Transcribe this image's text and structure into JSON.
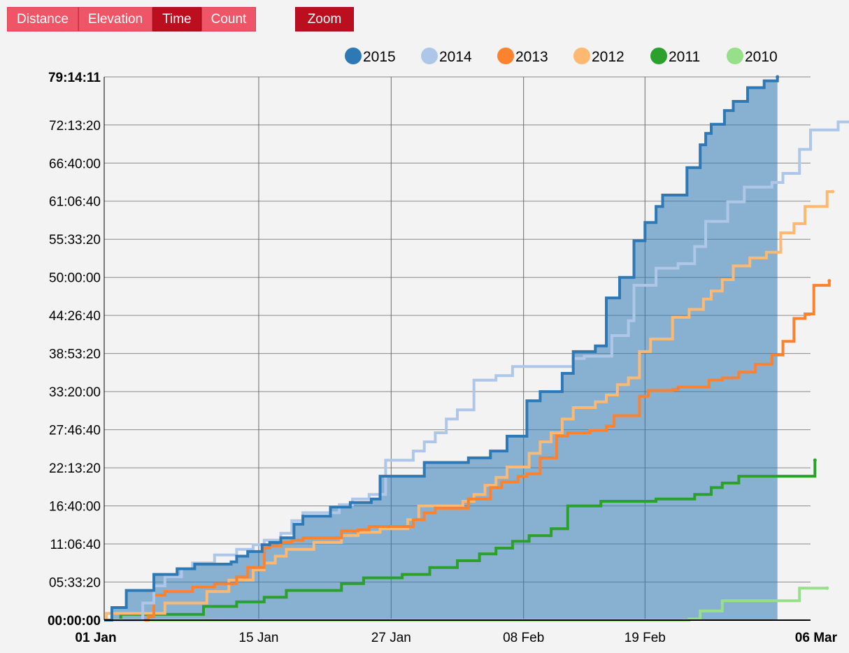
{
  "toolbar": {
    "metrics": [
      {
        "label": "Distance",
        "active": false
      },
      {
        "label": "Elevation",
        "active": false
      },
      {
        "label": "Time",
        "active": true
      },
      {
        "label": "Count",
        "active": false
      }
    ],
    "zoom_label": "Zoom"
  },
  "chart_data": {
    "type": "line",
    "x_unit": "day of year",
    "xlim": [
      "01 Jan",
      "06 Mar"
    ],
    "x_ticks": [
      {
        "day": 1,
        "label": "01 Jan",
        "bold": true
      },
      {
        "day": 15,
        "label": "15 Jan",
        "bold": false
      },
      {
        "day": 27,
        "label": "27 Jan",
        "bold": false
      },
      {
        "day": 39,
        "label": "08 Feb",
        "bold": false
      },
      {
        "day": 50,
        "label": "19 Feb",
        "bold": false
      },
      {
        "day": 65,
        "label": "06 Mar",
        "bold": true
      }
    ],
    "ylim": [
      "00:00:00",
      "79:14:11"
    ],
    "y_ticks": [
      "00:00:00",
      "05:33:20",
      "11:06:40",
      "16:40:00",
      "22:13:20",
      "27:46:40",
      "33:20:00",
      "38:53:20",
      "44:26:40",
      "50:00:00",
      "55:33:20",
      "61:06:40",
      "66:40:00",
      "72:13:20",
      "79:14:11"
    ],
    "grid": true,
    "legend_position": "top-right",
    "series": [
      {
        "name": "2015",
        "color": "#2e78b5",
        "fill": true,
        "points": [
          [
            1,
            "00:00:00"
          ],
          [
            1.7,
            "01:50:00"
          ],
          [
            3,
            "04:20:00"
          ],
          [
            5,
            "04:20:00"
          ],
          [
            5.5,
            "6:40:00"
          ],
          [
            7.5,
            "6:40:00"
          ],
          [
            7.6,
            "7:30:00"
          ],
          [
            9,
            "7:30:00"
          ],
          [
            9.2,
            "8:10:00"
          ],
          [
            11,
            "8:10:00"
          ],
          [
            12.5,
            "8:30:00"
          ],
          [
            13,
            "9:20:00"
          ],
          [
            14,
            "10:00:00"
          ],
          [
            15.3,
            "11:00:00"
          ],
          [
            16,
            "11:20:00"
          ],
          [
            17,
            "12:00:00"
          ],
          [
            18.2,
            "14:00:00"
          ],
          [
            19,
            "15:10:00"
          ],
          [
            21.5,
            "16:30:00"
          ],
          [
            23.3,
            "17:10:00"
          ],
          [
            25.2,
            "17:40:00"
          ],
          [
            26,
            "21:00:00"
          ],
          [
            30,
            "23:00:00"
          ],
          [
            34,
            "23:40:00"
          ],
          [
            36,
            "24:40:00"
          ],
          [
            37.5,
            "26:50:00"
          ],
          [
            39.3,
            "32:00:00"
          ],
          [
            40.5,
            "33:20:00"
          ],
          [
            42.5,
            "36:00:00"
          ],
          [
            43.5,
            "39:10:00"
          ],
          [
            45.5,
            "40:00:00"
          ],
          [
            46.5,
            "47:00:00"
          ],
          [
            47.7,
            "50:00:00"
          ],
          [
            49,
            "55:20:00"
          ],
          [
            50,
            "58:00:00"
          ],
          [
            51,
            "60:20:00"
          ],
          [
            51.6,
            "62:00:00"
          ],
          [
            53.8,
            "66:00:00"
          ],
          [
            55,
            "69:20:00"
          ],
          [
            55.5,
            "71:00:00"
          ],
          [
            56,
            "72:20:00"
          ],
          [
            57.2,
            "74:20:00"
          ],
          [
            58,
            "75:40:00"
          ],
          [
            59.3,
            "77:40:00"
          ],
          [
            60.8,
            "78:40:00"
          ],
          [
            62,
            "79:14:11"
          ]
        ]
      },
      {
        "name": "2014",
        "color": "#aec7e8",
        "fill": false,
        "points": [
          [
            1,
            "00:00:00"
          ],
          [
            4.5,
            "02:30:00"
          ],
          [
            5.5,
            "05:00:00"
          ],
          [
            6.5,
            "06:20:00"
          ],
          [
            8,
            "07:30:00"
          ],
          [
            9,
            "8:20:00"
          ],
          [
            11,
            "9:30:00"
          ],
          [
            13,
            "10:20:00"
          ],
          [
            14.5,
            "11:00:00"
          ],
          [
            15.5,
            "11:40:00"
          ],
          [
            17,
            "12:40:00"
          ],
          [
            18,
            "14:30:00"
          ],
          [
            19,
            "15:40:00"
          ],
          [
            22.3,
            "16:50:00"
          ],
          [
            23.5,
            "17:40:00"
          ],
          [
            25,
            "18:20:00"
          ],
          [
            26.5,
            "23:20:00"
          ],
          [
            29,
            "24:40:00"
          ],
          [
            30,
            "26:00:00"
          ],
          [
            31,
            "27:20:00"
          ],
          [
            32,
            "29:20:00"
          ],
          [
            33,
            "30:40:00"
          ],
          [
            34.5,
            "35:00:00"
          ],
          [
            36.5,
            "35:40:00"
          ],
          [
            38,
            "37:00:00"
          ],
          [
            43,
            "37:00:00"
          ],
          [
            43.5,
            "38:10:00"
          ],
          [
            44.5,
            "38:30:00"
          ],
          [
            47,
            "41:30:00"
          ],
          [
            48.5,
            "43:40:00"
          ],
          [
            49,
            "48:50:00"
          ],
          [
            51,
            "51:20:00"
          ],
          [
            53,
            "52:00:00"
          ],
          [
            54.5,
            "54:30:00"
          ],
          [
            55.5,
            "58:10:00"
          ],
          [
            57.5,
            "61:00:00"
          ],
          [
            59,
            "63:10:00"
          ],
          [
            61.5,
            "63:50:00"
          ],
          [
            62.5,
            "65:10:00"
          ],
          [
            64,
            "68:40:00"
          ],
          [
            65,
            "71:30:00"
          ],
          [
            67.5,
            "72:40:00"
          ],
          [
            69,
            "72:40:00"
          ]
        ]
      },
      {
        "name": "2013",
        "color": "#fd8230",
        "fill": false,
        "points": [
          [
            1,
            "00:00:00"
          ],
          [
            5,
            "00:30:00"
          ],
          [
            5.5,
            "03:40:00"
          ],
          [
            6.5,
            "04:10:00"
          ],
          [
            7.5,
            "04:10:00"
          ],
          [
            9,
            "04:50:00"
          ],
          [
            11,
            "05:20:00"
          ],
          [
            12,
            "5:20:00"
          ],
          [
            13,
            "06:20:00"
          ],
          [
            14,
            "7:40:00"
          ],
          [
            15.5,
            "10:30:00"
          ],
          [
            16,
            "10:50:00"
          ],
          [
            17,
            "11:20:00"
          ],
          [
            18,
            "11:40:00"
          ],
          [
            19,
            "12:00:00"
          ],
          [
            20,
            "12:00:00"
          ],
          [
            21,
            "12:00:00"
          ],
          [
            22.5,
            "13:00:00"
          ],
          [
            24,
            "13:10:00"
          ],
          [
            25,
            "13:40:00"
          ],
          [
            27,
            "13:40:00"
          ],
          [
            29,
            "14:40:00"
          ],
          [
            30,
            "15:40:00"
          ],
          [
            31,
            "16:20:00"
          ],
          [
            32,
            "16:20:00"
          ],
          [
            34,
            "17:40:00"
          ],
          [
            36,
            "19:20:00"
          ],
          [
            37,
            "20:10:00"
          ],
          [
            38.5,
            "21:00:00"
          ],
          [
            39.3,
            "21:20:00"
          ],
          [
            40.5,
            "23:40:00"
          ],
          [
            42,
            "26:50:00"
          ],
          [
            43,
            "27:20:00"
          ],
          [
            45,
            "27:40:00"
          ],
          [
            46.5,
            "28:20:00"
          ],
          [
            47.2,
            "29:50:00"
          ],
          [
            49.5,
            "32:40:00"
          ],
          [
            50.3,
            "33:30:00"
          ],
          [
            52.5,
            "33:40:00"
          ],
          [
            53,
            "34:00:00"
          ],
          [
            55.8,
            "35:00:00"
          ],
          [
            57,
            "35:20:00"
          ],
          [
            58.5,
            "36:10:00"
          ],
          [
            60,
            "37:20:00"
          ],
          [
            61.5,
            "38:40:00"
          ],
          [
            62.5,
            "40:40:00"
          ],
          [
            63.5,
            "44:00:00"
          ],
          [
            64.5,
            "44:40:00"
          ],
          [
            65.3,
            "48:50:00"
          ],
          [
            66.7,
            "49:30:00"
          ]
        ]
      },
      {
        "name": "2012",
        "color": "#fdb872",
        "fill": false,
        "points": [
          [
            1,
            "00:00:00"
          ],
          [
            1.2,
            "01:00:00"
          ],
          [
            1.8,
            "01:00:00"
          ],
          [
            6.5,
            "02:30:00"
          ],
          [
            10.3,
            "04:10:00"
          ],
          [
            12.3,
            "05:50:00"
          ],
          [
            13.5,
            "05:50:00"
          ],
          [
            14.5,
            "07:20:00"
          ],
          [
            15.5,
            "08:20:00"
          ],
          [
            16.5,
            "09:20:00"
          ],
          [
            17.5,
            "10:20:00"
          ],
          [
            20,
            "11:20:00"
          ],
          [
            22.5,
            "12:20:00"
          ],
          [
            24,
            "12:50:00"
          ],
          [
            26,
            "13:20:00"
          ],
          [
            28.5,
            "14:40:00"
          ],
          [
            29.5,
            "16:40:00"
          ],
          [
            33.5,
            "17:20:00"
          ],
          [
            34.5,
            "18:20:00"
          ],
          [
            35.5,
            "19:40:00"
          ],
          [
            36.5,
            "20:50:00"
          ],
          [
            37.5,
            "22:20:00"
          ],
          [
            39.5,
            "24:20:00"
          ],
          [
            40.5,
            "26:00:00"
          ],
          [
            41.5,
            "27:20:00"
          ],
          [
            42.5,
            "29:20:00"
          ],
          [
            43.5,
            "31:00:00"
          ],
          [
            45.5,
            "31:50:00"
          ],
          [
            46.5,
            "32:50:00"
          ],
          [
            47.5,
            "34:20:00"
          ],
          [
            48.5,
            "35:20:00"
          ],
          [
            49.5,
            "39:10:00"
          ],
          [
            50.5,
            "41:00:00"
          ],
          [
            52.5,
            "44:10:00"
          ],
          [
            54,
            "45:20:00"
          ],
          [
            55.3,
            "46:50:00"
          ],
          [
            56,
            "48:00:00"
          ],
          [
            57,
            "49:40:00"
          ],
          [
            58,
            "51:40:00"
          ],
          [
            59.5,
            "52:50:00"
          ],
          [
            61,
            "53:40:00"
          ],
          [
            62.3,
            "56:30:00"
          ],
          [
            63.5,
            "57:50:00"
          ],
          [
            64.5,
            "60:20:00"
          ],
          [
            66.5,
            "62:30:00"
          ],
          [
            67,
            "62:30:00"
          ]
        ]
      },
      {
        "name": "2011",
        "color": "#2ca02c",
        "fill": false,
        "points": [
          [
            1,
            "00:00:00"
          ],
          [
            2.5,
            "00:50:00"
          ],
          [
            9,
            "00:50:00"
          ],
          [
            10,
            "02:00:00"
          ],
          [
            13,
            "02:40:00"
          ],
          [
            15.5,
            "03:20:00"
          ],
          [
            17.5,
            "04:20:00"
          ],
          [
            21,
            "04:20:00"
          ],
          [
            22.5,
            "05:20:00"
          ],
          [
            24.5,
            "06:10:00"
          ],
          [
            28,
            "06:40:00"
          ],
          [
            30.5,
            "07:40:00"
          ],
          [
            33,
            "08:40:00"
          ],
          [
            35,
            "09:40:00"
          ],
          [
            36.5,
            "10:30:00"
          ],
          [
            38,
            "11:30:00"
          ],
          [
            39.5,
            "12:20:00"
          ],
          [
            41.5,
            "13:20:00"
          ],
          [
            43,
            "16:40:00"
          ],
          [
            45.5,
            "16:40:00"
          ],
          [
            46,
            "17:20:00"
          ],
          [
            48.5,
            "17:20:00"
          ],
          [
            51,
            "17:40:00"
          ],
          [
            54.5,
            "18:20:00"
          ],
          [
            56,
            "19:20:00"
          ],
          [
            57,
            "20:00:00"
          ],
          [
            58.5,
            "21:00:00"
          ],
          [
            61.8,
            "21:00:00"
          ],
          [
            65.4,
            "23:20:00"
          ]
        ]
      },
      {
        "name": "2010",
        "color": "#98df8a",
        "fill": false,
        "points": [
          [
            1,
            "00:00:00"
          ],
          [
            54,
            "00:10:00"
          ],
          [
            55,
            "01:20:00"
          ],
          [
            57,
            "02:50:00"
          ],
          [
            61.5,
            "02:50:00"
          ],
          [
            63.5,
            "02:50:00"
          ],
          [
            64,
            "04:40:00"
          ],
          [
            66.5,
            "04:40:00"
          ]
        ]
      }
    ]
  }
}
